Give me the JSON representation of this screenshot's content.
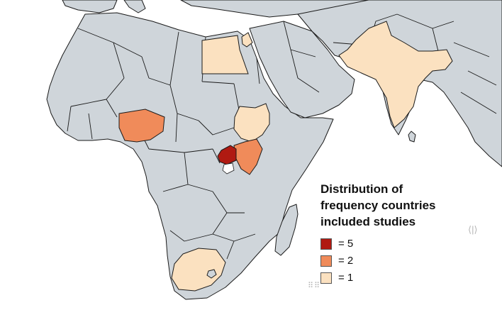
{
  "legend": {
    "title_lines": [
      "Distribution of",
      "frequency countries",
      "included studies"
    ],
    "items": [
      {
        "label": "= 5",
        "color": "#b01a12"
      },
      {
        "label": "= 2",
        "color": "#f08b5a"
      },
      {
        "label": "= 1",
        "color": "#fbe1c0"
      }
    ]
  },
  "map_colors": {
    "land": "#cfd5da",
    "sea": "#ffffff",
    "border": "#1a1a1a"
  },
  "highlighted_countries": [
    {
      "country": "Uganda",
      "count": 5
    },
    {
      "country": "Nigeria",
      "count": 2
    },
    {
      "country": "Kenya",
      "count": 2
    },
    {
      "country": "Egypt",
      "count": 1
    },
    {
      "country": "Ethiopia",
      "count": 1
    },
    {
      "country": "India",
      "count": 1
    },
    {
      "country": "South Africa",
      "count": 1
    }
  ],
  "icons": {
    "right_handle": "resize-handle-icon",
    "bottom_handle": "resize-grip-icon"
  }
}
